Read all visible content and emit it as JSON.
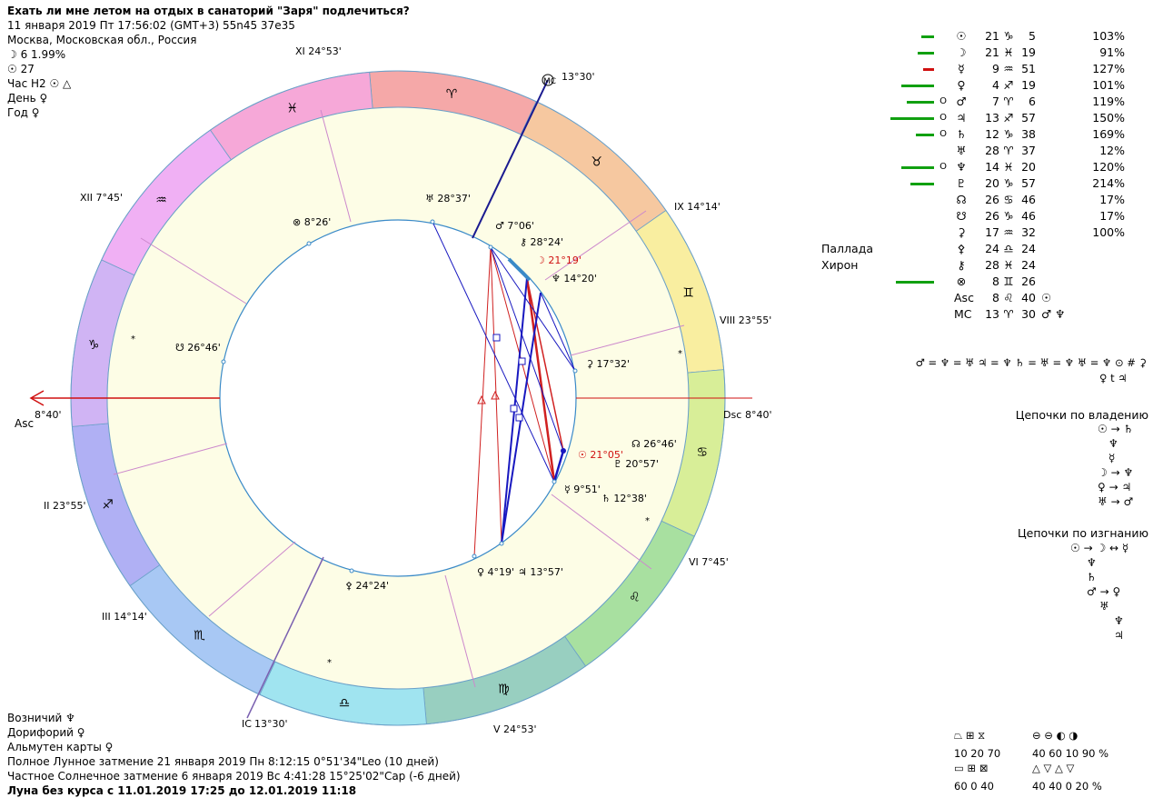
{
  "header": {
    "title": "Ехать ли мне летом на отдых в санаторий \"Заря\" подлечиться?",
    "datetime": "11 января 2019  Пт  17:56:02 (GMT+3) 55n45  37e35",
    "location": "Москва, Московская обл., Россия",
    "moon_phase": "☽  6 1.99%",
    "sun_value": "☉  27",
    "hour": "Час H2  ☉  △",
    "day": "День  ♀",
    "year": "Год  ♀"
  },
  "chart": {
    "asc_label": "Asc",
    "asc_deg": "8°40'",
    "dsc_label": "Dsc",
    "dsc_deg": "8°40'",
    "mc_label": "MC",
    "mc_deg": "13°30'",
    "ic_label": "IC",
    "ic_deg": "13°30'",
    "cusps": {
      "II": "II 23°55'",
      "III": "III 14°14'",
      "V": "V 24°53'",
      "VI": "VI 7°45'",
      "VIII": "VIII 23°55'",
      "IX": "IX 14°14'",
      "XI": "XI 24°53'",
      "XII": "XII 7°45'"
    },
    "signs": [
      "♈",
      "♉",
      "♊",
      "♋",
      "♌",
      "♍",
      "♎",
      "♏",
      "♐",
      "♑",
      "♒",
      "♓"
    ],
    "planets": {
      "uranus": "♅ 28°37'",
      "fortune": "⊗ 8°26'",
      "mars": "♂ 7°06'",
      "chiron": "⚷ 28°24'",
      "moon": "☽ 21°19'",
      "neptune": "♆ 14°20'",
      "ceres": "⚳ 17°32'",
      "node_s": "☋ 26°46'",
      "node_n": "☊ 26°46'",
      "sun": "☉ 21°05'",
      "pluto": "♇ 20°57'",
      "mercury": "☿ 9°51'",
      "saturn": "♄ 12°38'",
      "venus": "♀ 4°19'",
      "jupiter": "♃ 13°57'",
      "pallas": "⚴ 24°24'"
    }
  },
  "table": {
    "rows": [
      {
        "pl": "☉",
        "deg": "21",
        "sign": "♑",
        "min": "5",
        "extra": "",
        "pct": "103%",
        "bar_w": 14,
        "bar_c": "#10a010",
        "mark": ""
      },
      {
        "pl": "☽",
        "deg": "21",
        "sign": "♓",
        "min": "19",
        "extra": "",
        "pct": "91%",
        "bar_w": 18,
        "bar_c": "#10a010",
        "mark": ""
      },
      {
        "pl": "☿",
        "deg": "9",
        "sign": "♒",
        "min": "51",
        "extra": "",
        "pct": "127%",
        "bar_w": 12,
        "bar_c": "#d01010",
        "mark": ""
      },
      {
        "pl": "♀",
        "deg": "4",
        "sign": "♐",
        "min": "19",
        "extra": "",
        "pct": "101%",
        "bar_w": 36,
        "bar_c": "#10a010",
        "mark": ""
      },
      {
        "pl": "♂",
        "deg": "7",
        "sign": "♈",
        "min": "6",
        "extra": "",
        "pct": "119%",
        "bar_w": 30,
        "bar_c": "#10a010",
        "mark": "O"
      },
      {
        "pl": "♃",
        "deg": "13",
        "sign": "♐",
        "min": "57",
        "extra": "",
        "pct": "150%",
        "bar_w": 48,
        "bar_c": "#10a010",
        "mark": "O"
      },
      {
        "pl": "♄",
        "deg": "12",
        "sign": "♑",
        "min": "38",
        "extra": "",
        "pct": "169%",
        "bar_w": 20,
        "bar_c": "#10a010",
        "mark": "O"
      },
      {
        "pl": "♅",
        "deg": "28",
        "sign": "♈",
        "min": "37",
        "extra": "",
        "pct": "12%",
        "bar_w": 0,
        "bar_c": "#10a010",
        "mark": ""
      },
      {
        "pl": "♆",
        "deg": "14",
        "sign": "♓",
        "min": "20",
        "extra": "",
        "pct": "120%",
        "bar_w": 36,
        "bar_c": "#10a010",
        "mark": "O"
      },
      {
        "pl": "♇",
        "deg": "20",
        "sign": "♑",
        "min": "57",
        "extra": "",
        "pct": "214%",
        "bar_w": 26,
        "bar_c": "#10a010",
        "mark": ""
      },
      {
        "pl": "☊",
        "deg": "26",
        "sign": "♋",
        "min": "46",
        "extra": "",
        "pct": "17%",
        "bar_w": 0,
        "bar_c": "#10a010",
        "mark": ""
      },
      {
        "pl": "☋",
        "deg": "26",
        "sign": "♑",
        "min": "46",
        "extra": "",
        "pct": "17%",
        "bar_w": 0,
        "bar_c": "#10a010",
        "mark": ""
      },
      {
        "pl": "⚳",
        "deg": "17",
        "sign": "♒",
        "min": "32",
        "extra": "",
        "pct": "100%",
        "bar_w": 0,
        "bar_c": "#10a010",
        "mark": ""
      },
      {
        "label": "Паллада",
        "pl": "⚴",
        "deg": "24",
        "sign": "♎",
        "min": "24",
        "extra": "",
        "pct": "",
        "bar_w": 0,
        "bar_c": "#10a010",
        "mark": ""
      },
      {
        "label": "Хирон",
        "pl": "⚷",
        "deg": "28",
        "sign": "♓",
        "min": "24",
        "extra": "",
        "pct": "",
        "bar_w": 0,
        "bar_c": "#10a010",
        "mark": ""
      },
      {
        "pl": "⊗",
        "deg": "8",
        "sign": "♊",
        "min": "26",
        "extra": "",
        "pct": "",
        "bar_w": 42,
        "bar_c": "#10a010",
        "mark": ""
      },
      {
        "pl": "Asc",
        "deg": "8",
        "sign": "♌",
        "min": "40",
        "extra": "☉",
        "pct": "",
        "bar_w": 0,
        "bar_c": "#10a010",
        "mark": ""
      },
      {
        "pl": "MC",
        "deg": "13",
        "sign": "♈",
        "min": "30",
        "extra": "♂ ♆",
        "pct": "",
        "bar_w": 0,
        "bar_c": "#10a010",
        "mark": ""
      }
    ]
  },
  "relations": {
    "line1": "♂ = ♆ = ♅  ♃ = ♆  ♄ = ♅ = ♆  ♅ = ♆ ⊙ # ⚳",
    "line2": "♀ t ♃"
  },
  "chains_rule": {
    "title": "Цепочки по владению",
    "lines": [
      "☉ → ♄",
      "♆",
      "☿",
      "☽ → ♆",
      "♀ → ♃",
      "♅ → ♂"
    ]
  },
  "chains_exile": {
    "title": "Цепочки по изгнанию",
    "lines": [
      "☉ → ☽ ↔ ☿",
      "♆",
      "♄",
      "♂ → ♀",
      "♅",
      "♆",
      "♃"
    ]
  },
  "bottom": {
    "ruler": "Возничий  ♆",
    "doryphory": "Дорифорий  ♀",
    "almuten": "Альмутен карты  ♀",
    "eclipse1": "Полное Лунное затмение 21 января 2019 Пн  8:12:15  0°51'34\"Leo (10 дней)",
    "eclipse2": "Частное Солнечное затмение 6 января 2019 Вс  4:41:28 15°25'02\"Cap (-6 дней)",
    "void": "Луна без курса с 11.01.2019 17:25 до 12.01.2019 11:18"
  },
  "legend": {
    "row1_nums": "10  20  70",
    "row1b_nums": "40  60  10  90 %",
    "row2_nums": "60   0  40",
    "row2b_nums": "40  40   0  20 %"
  },
  "colors": {
    "green": "#10a010",
    "red": "#d01010",
    "blue": "#1818c0",
    "ring_bg": "#fdfde6",
    "aspect_red": "#d02020"
  }
}
